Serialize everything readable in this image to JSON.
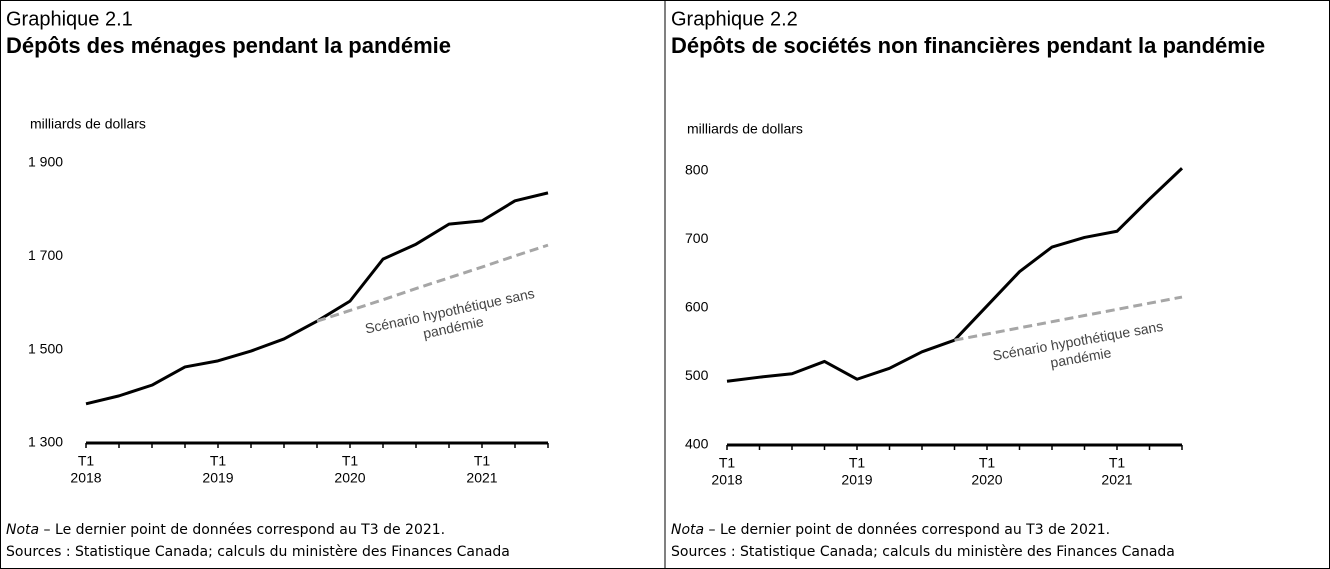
{
  "chart_data": [
    {
      "type": "line",
      "label": "Graphique 2.1",
      "title": "Dépôts des ménages pendant la pandémie",
      "y_label": "milliards de dollars",
      "categories": [
        [
          "T1",
          "2018"
        ],
        null,
        null,
        null,
        [
          "T1",
          "2019"
        ],
        null,
        null,
        null,
        [
          "T1",
          "2020"
        ],
        null,
        null,
        null,
        [
          "T1",
          "2021"
        ],
        null,
        null
      ],
      "series": [
        {
          "color": "#000000",
          "style": "solid",
          "values": [
            1384,
            1401,
            1424,
            1463,
            1476,
            1497,
            1523,
            1561,
            1604,
            1694,
            1726,
            1769,
            1776,
            1819,
            1836
          ]
        },
        {
          "color": "#a6a6a6",
          "style": "dashed",
          "values": [
            null,
            null,
            null,
            null,
            null,
            null,
            null,
            1561,
            1584,
            1607,
            1631,
            1654,
            1677,
            1701,
            1724
          ]
        }
      ],
      "annotation": [
        "Scénario hypothétique sans",
        "pandémie"
      ],
      "ylim": [
        1300,
        1900
      ],
      "yticks": [
        {
          "value": 1300,
          "label": "1 300"
        },
        {
          "value": 1500,
          "label": "1 500"
        },
        {
          "value": 1700,
          "label": "1 700"
        },
        {
          "value": 1900,
          "label": "1 900"
        }
      ],
      "grid": false,
      "note": {
        "label": "Nota",
        "text": " – Le dernier point de données correspond au T3 de 2021."
      },
      "sources": "Sources : Statistique Canada; calculs du ministère des Finances Canada"
    },
    {
      "type": "line",
      "label": "Graphique 2.2",
      "title": "Dépôts de sociétés non financières pendant la pandémie",
      "y_label": "milliards de dollars",
      "categories": [
        [
          "T1",
          "2018"
        ],
        null,
        null,
        null,
        [
          "T1",
          "2019"
        ],
        null,
        null,
        null,
        [
          "T1",
          "2020"
        ],
        null,
        null,
        null,
        [
          "T1",
          "2021"
        ],
        null,
        null
      ],
      "series": [
        {
          "color": "#000000",
          "style": "solid",
          "values": [
            493,
            499,
            504,
            522,
            496,
            512,
            536,
            553,
            603,
            653,
            689,
            703,
            712,
            759,
            804
          ]
        },
        {
          "color": "#a6a6a6",
          "style": "dashed",
          "values": [
            null,
            null,
            null,
            null,
            null,
            null,
            null,
            553,
            562,
            571,
            580,
            589,
            598,
            607,
            616
          ]
        }
      ],
      "annotation": [
        "Scénario hypothétique sans",
        "pandémie"
      ],
      "ylim": [
        400,
        800
      ],
      "yticks": [
        400,
        500,
        600,
        700,
        800
      ],
      "grid": false,
      "note": {
        "label": "Nota",
        "text": " – Le dernier point de données correspond au T3 de 2021."
      },
      "sources": "Sources : Statistique Canada; calculs du ministère des Finances Canada"
    }
  ]
}
